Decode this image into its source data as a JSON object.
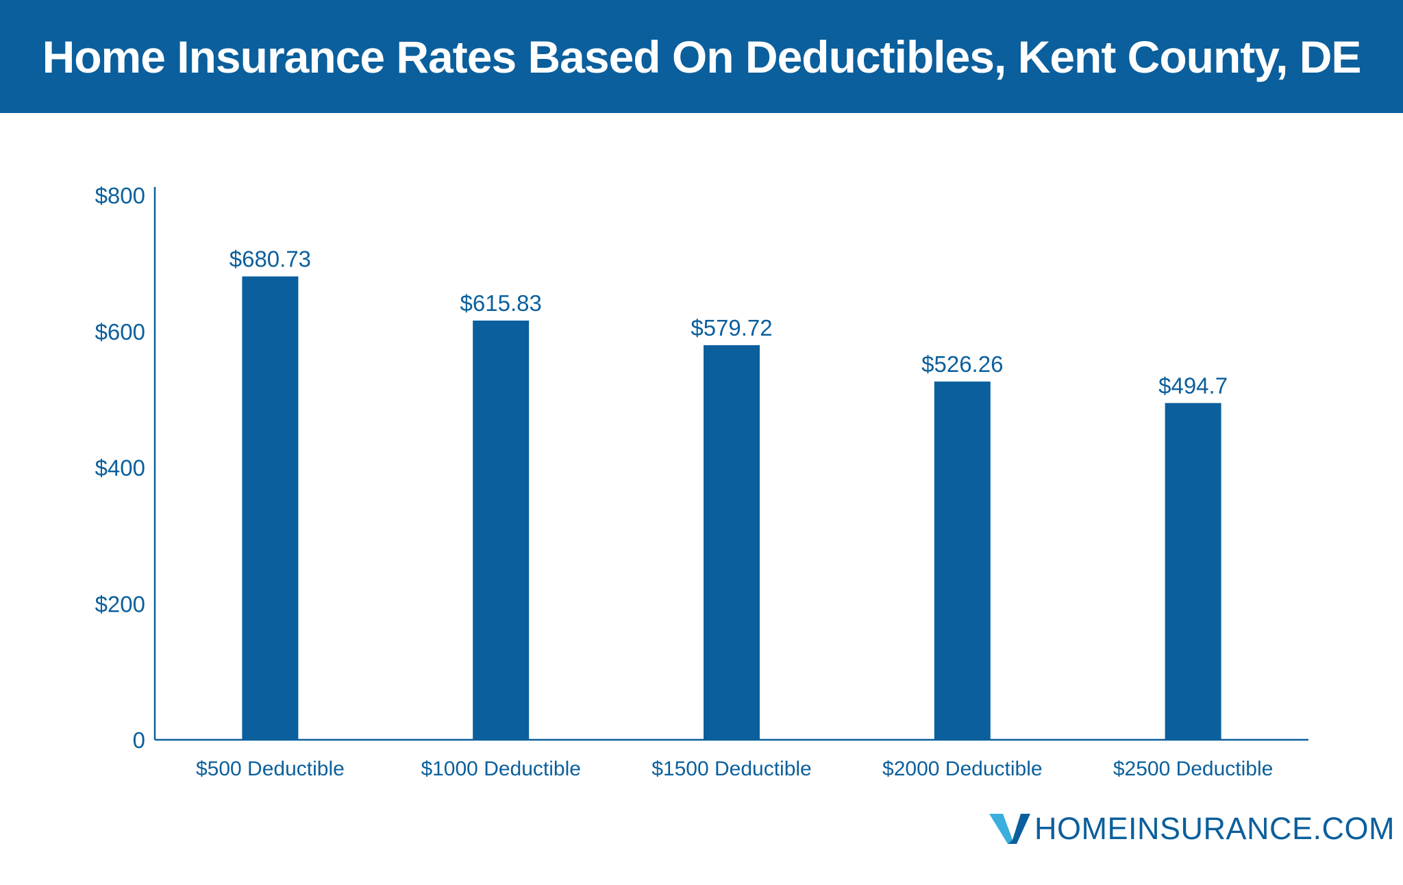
{
  "header": {
    "title": "Home Insurance Rates Based On Deductibles, Kent County, DE"
  },
  "colors": {
    "header_bg": "#0b5f9c",
    "bar": "#0b5f9c",
    "axis": "#0b5f9c",
    "text": "#0b5f9c",
    "logo_light": "#3aaedc",
    "logo_dark": "#0b5f9c"
  },
  "chart_data": {
    "type": "bar",
    "title": "Home Insurance Rates Based On Deductibles, Kent County, DE",
    "xlabel": "",
    "ylabel": "",
    "categories": [
      "$500 Deductible",
      "$1000 Deductible",
      "$1500 Deductible",
      "$2000 Deductible",
      "$2500 Deductible"
    ],
    "values": [
      680.73,
      615.83,
      579.72,
      526.26,
      494.7
    ],
    "value_labels": [
      "$680.73",
      "$615.83",
      "$579.72",
      "$526.26",
      "$494.7"
    ],
    "ylim": [
      0,
      800
    ],
    "y_ticks": [
      0,
      200,
      400,
      600,
      800
    ],
    "y_tick_labels": [
      "0",
      "$200",
      "$400",
      "$600",
      "$800"
    ],
    "grid": false,
    "legend": "none"
  },
  "brand": {
    "logo_icon": "v-check-logo-icon",
    "name": "HOMEINSURANCE.COM"
  }
}
